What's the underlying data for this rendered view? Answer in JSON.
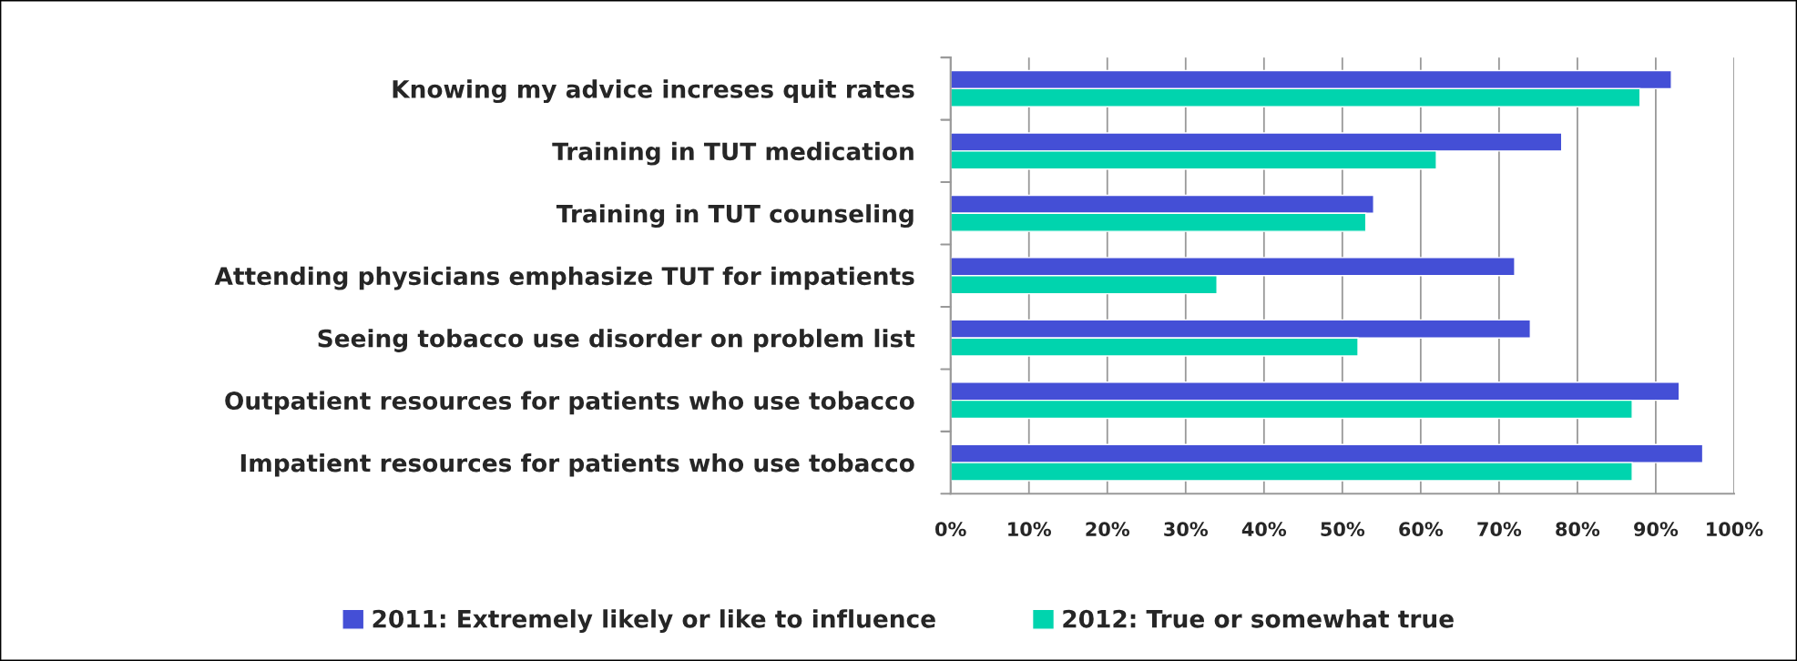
{
  "chart_data": {
    "type": "bar",
    "orientation": "horizontal",
    "categories": [
      "Knowing my advice increses quit rates",
      "Training in TUT medication",
      "Training in TUT counseling",
      "Attending physicians emphasize TUT for impatients",
      "Seeing tobacco use disorder on problem list",
      "Outpatient resources for patients who use tobacco",
      "Impatient resources for patients who use tobacco"
    ],
    "series": [
      {
        "name": "2011: Extremely likely or like to influence",
        "color": "#444fd6",
        "values": [
          92,
          78,
          54,
          72,
          74,
          93,
          96
        ]
      },
      {
        "name": "2012: True or somewhat true",
        "color": "#00d4ae",
        "values": [
          88,
          62,
          53,
          34,
          52,
          87,
          87
        ]
      }
    ],
    "xlim": [
      0,
      100
    ],
    "xticks": [
      {
        "value": 0,
        "label": "0%"
      },
      {
        "value": 10,
        "label": "10%"
      },
      {
        "value": 20,
        "label": "20%"
      },
      {
        "value": 30,
        "label": "30%"
      },
      {
        "value": 40,
        "label": "40%"
      },
      {
        "value": 50,
        "label": "50%"
      },
      {
        "value": 60,
        "label": "60%"
      },
      {
        "value": 70,
        "label": "70%"
      },
      {
        "value": 80,
        "label": "80%"
      },
      {
        "value": 90,
        "label": "90%"
      },
      {
        "value": 100,
        "label": "100%"
      }
    ],
    "grid": "x",
    "legend": "bottom"
  }
}
